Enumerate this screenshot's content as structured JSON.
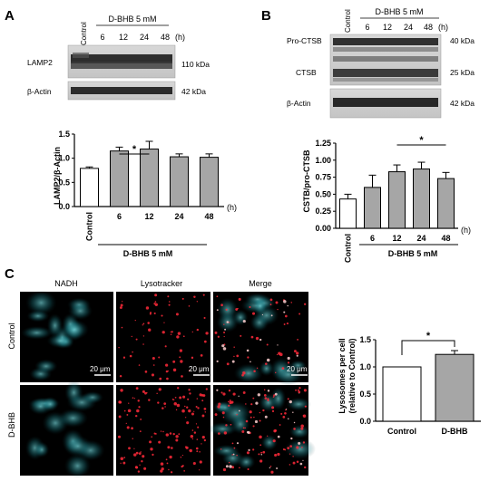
{
  "panels": {
    "A": {
      "letter": "A",
      "blot": {
        "control_label": "Control",
        "treatment_label": "D-BHB 5 mM",
        "times": [
          "6",
          "12",
          "24",
          "48"
        ],
        "time_unit": "(h)",
        "bands": [
          {
            "name": "LAMP2",
            "kda": "110 kDa"
          },
          {
            "name": "β-Actin",
            "kda": "42 kDa"
          }
        ]
      },
      "chart_data": {
        "type": "bar",
        "categories": [
          "Control",
          "6",
          "12",
          "24",
          "48"
        ],
        "values": [
          0.79,
          1.15,
          1.19,
          1.03,
          1.02
        ],
        "errors": [
          0.03,
          0.08,
          0.16,
          0.06,
          0.07
        ],
        "ylabel": "LAMP2/β-Actin",
        "ylim": [
          0,
          1.5
        ],
        "yticks": [
          "0.0",
          "0.5",
          "1.0",
          "1.5"
        ],
        "xunit": "(h)",
        "group_label": "D-BHB 5 mM",
        "significance": "*",
        "colors": {
          "control": "#ffffff",
          "treated": "#a6a6a6"
        }
      }
    },
    "B": {
      "letter": "B",
      "blot": {
        "control_label": "Control",
        "treatment_label": "D-BHB 5 mM",
        "times": [
          "6",
          "12",
          "24",
          "48"
        ],
        "time_unit": "(h)",
        "bands": [
          {
            "name": "Pro-CTSB",
            "kda": "40 kDa"
          },
          {
            "name": "CTSB",
            "kda": "25 kDa"
          },
          {
            "name": "β-Actin",
            "kda": "42 kDa"
          }
        ]
      },
      "chart_data": {
        "type": "bar",
        "categories": [
          "Control",
          "6",
          "12",
          "24",
          "48"
        ],
        "values": [
          0.43,
          0.6,
          0.83,
          0.87,
          0.73
        ],
        "errors": [
          0.07,
          0.18,
          0.1,
          0.1,
          0.09
        ],
        "ylabel": "CSTB/pro-CTSB",
        "ylim": [
          0,
          1.25
        ],
        "yticks": [
          "0.00",
          "0.25",
          "0.50",
          "0.75",
          "1.00",
          "1.25"
        ],
        "xunit": "(h)",
        "group_label": "D-BHB 5 mM",
        "significance": "*",
        "colors": {
          "control": "#ffffff",
          "treated": "#a6a6a6"
        }
      }
    },
    "C": {
      "letter": "C",
      "columns": [
        "NADH",
        "Lysotracker",
        "Merge"
      ],
      "rows": [
        "Control",
        "D-BHB"
      ],
      "scale_bar": "20 μm",
      "chart_data": {
        "type": "bar",
        "categories": [
          "Control",
          "D-BHB"
        ],
        "values": [
          1.0,
          1.23
        ],
        "errors": [
          0.0,
          0.07
        ],
        "ylabel": "Lysosomes per cell",
        "ylabel2": "(relative to Control)",
        "ylim": [
          0,
          1.5
        ],
        "yticks": [
          "0.0",
          "0.5",
          "1.0",
          "1.5"
        ],
        "significance": "*",
        "colors": {
          "control": "#ffffff",
          "treated": "#a6a6a6"
        }
      }
    }
  }
}
